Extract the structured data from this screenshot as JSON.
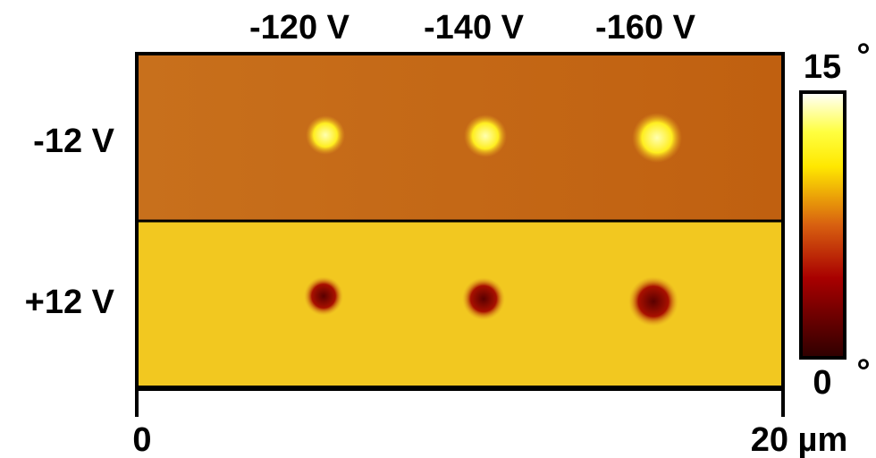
{
  "chart_data": {
    "type": "image",
    "column_labels": [
      "-120 V",
      "-140 V",
      "-160 V"
    ],
    "row_labels": [
      "-12 V",
      "+12 V"
    ],
    "xlim": [
      0,
      20
    ],
    "xticks": [
      0,
      {
        "value": 20,
        "label": "20 µm"
      }
    ],
    "clim": [
      0,
      15
    ],
    "cticks": [
      0,
      15
    ],
    "c_unit": "°"
  }
}
